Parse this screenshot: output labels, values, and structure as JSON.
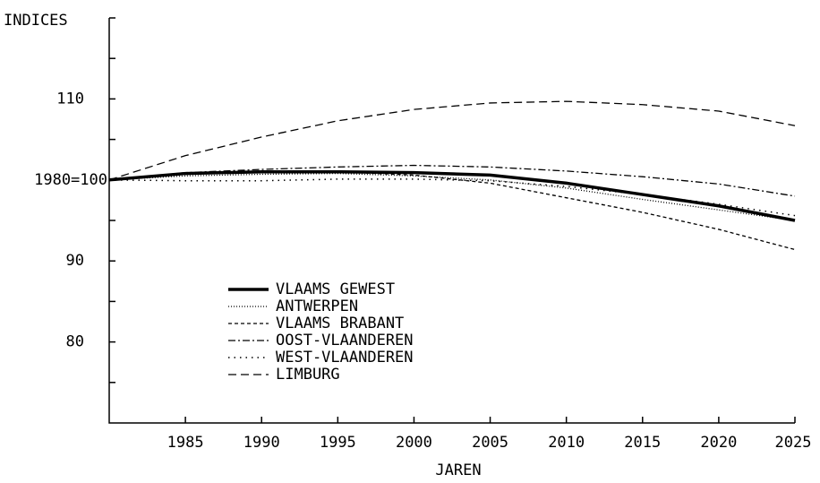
{
  "chart_data": {
    "type": "line",
    "y_title": "INDICES",
    "x_title": "JAREN",
    "x": [
      1980,
      1985,
      1990,
      1995,
      2000,
      2005,
      2010,
      2015,
      2020,
      2025
    ],
    "xlim": [
      1980,
      2025
    ],
    "xticks": [
      1985,
      1990,
      1995,
      2000,
      2005,
      2010,
      2015,
      2020,
      2025
    ],
    "ylim": [
      70,
      120
    ],
    "yticks": [
      80,
      90,
      {
        "value": 100,
        "label": "1980=100"
      },
      110
    ],
    "yminorticks": [
      75,
      85,
      95,
      105,
      115,
      120
    ],
    "series": [
      {
        "name": "VLAAMS GEWEST",
        "color": "#000",
        "dash": "none",
        "width": 3.5,
        "values": [
          100,
          100.8,
          101,
          101,
          100.9,
          100.6,
          99.6,
          98.2,
          96.8,
          95
        ]
      },
      {
        "name": "ANTWERPEN",
        "color": "#000",
        "dash": "1 2",
        "width": 1.3,
        "values": [
          100,
          100.5,
          100.7,
          100.8,
          100.5,
          100,
          99,
          97.6,
          96.3,
          95
        ]
      },
      {
        "name": "VLAAMS BRABANT",
        "color": "#000",
        "dash": "4 3",
        "width": 1.3,
        "values": [
          100,
          100.7,
          101,
          101,
          100.6,
          99.6,
          97.8,
          96,
          93.9,
          91.4
        ]
      },
      {
        "name": "OOST-VLAANDEREN",
        "color": "#000",
        "dash": "8 3 2 3",
        "width": 1.3,
        "values": [
          100,
          100.9,
          101.3,
          101.6,
          101.8,
          101.6,
          101.1,
          100.4,
          99.5,
          98
        ]
      },
      {
        "name": "WEST-VLAANDEREN",
        "color": "#000",
        "dash": "1.5 5",
        "width": 1.5,
        "values": [
          100,
          99.9,
          99.9,
          100.1,
          100.1,
          99.9,
          99.2,
          98.2,
          97,
          95.6
        ]
      },
      {
        "name": "LIMBURG",
        "color": "#000",
        "dash": "9 5",
        "width": 1.3,
        "values": [
          100,
          103,
          105.3,
          107.3,
          108.7,
          109.5,
          109.7,
          109.3,
          108.5,
          106.7
        ]
      }
    ]
  }
}
